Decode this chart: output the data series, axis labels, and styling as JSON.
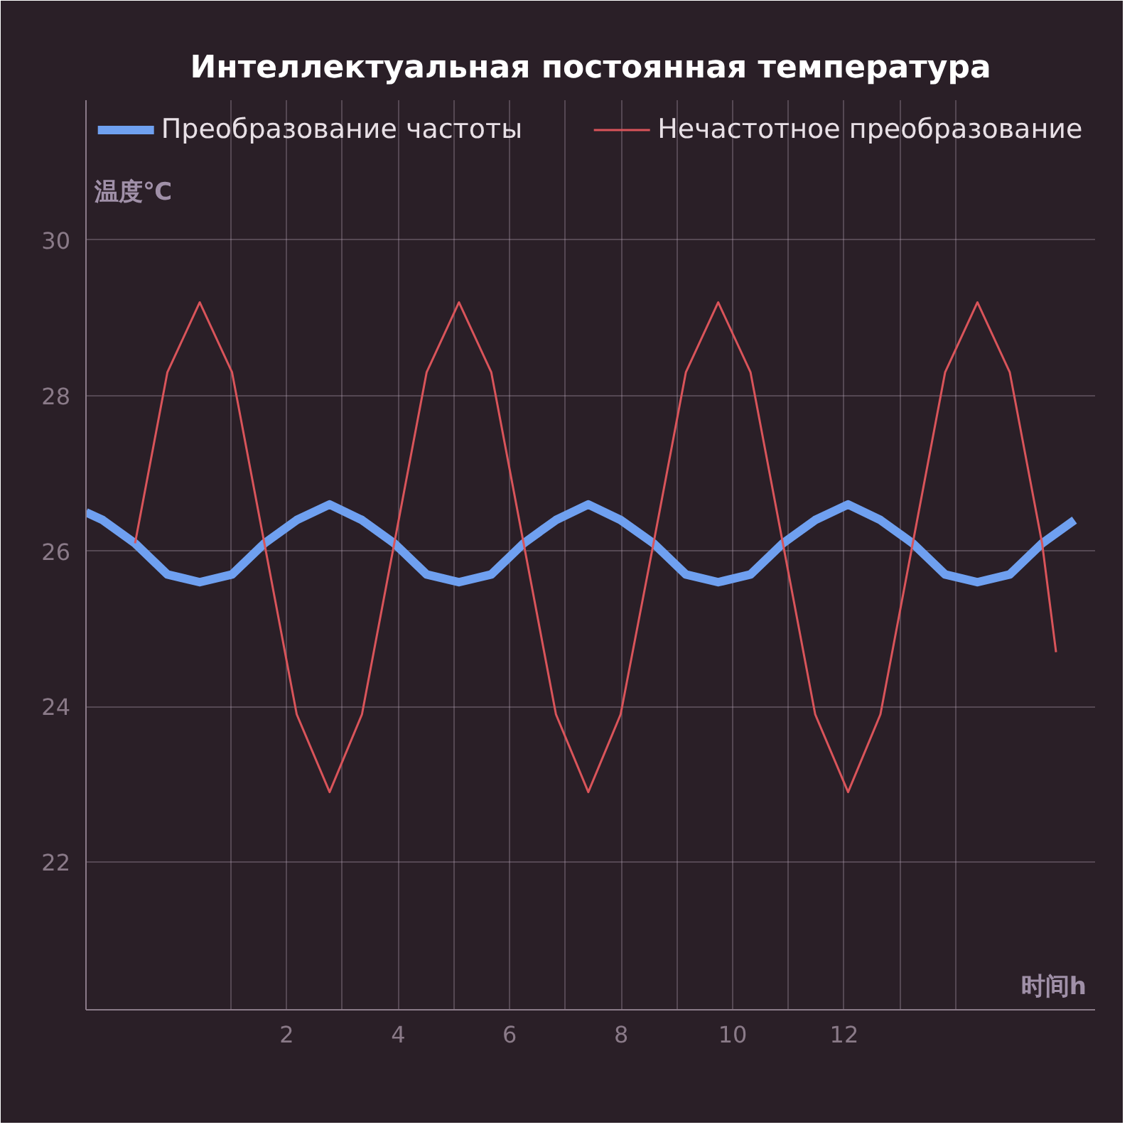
{
  "chart_data": {
    "type": "line",
    "title": "Интеллектуальная постоянная температура",
    "ylabel": "温度℃",
    "xlabel": "时间h",
    "xlim": [
      -1.6,
      16.5
    ],
    "ylim": [
      20.1,
      31.8
    ],
    "xticks": [
      {
        "value": 1,
        "label": null
      },
      2,
      {
        "value": 3,
        "label": null
      },
      4,
      {
        "value": 5,
        "label": null
      },
      6,
      {
        "value": 7,
        "label": null
      },
      8,
      {
        "value": 9,
        "label": null
      },
      10,
      {
        "value": 11,
        "label": null
      },
      12,
      {
        "value": 13,
        "label": null
      },
      {
        "value": 14,
        "label": null
      }
    ],
    "yticks": [
      22,
      24,
      26,
      28,
      30
    ],
    "grid": true,
    "legend": "top",
    "marker": "none",
    "line_style": "solid",
    "series": [
      {
        "name": "Преобразование частоты",
        "color": "#6fa0f0",
        "x": [
          -1.6,
          -1.3,
          -0.72,
          -0.14,
          0.44,
          1.02,
          1.6,
          2.18,
          2.77,
          3.35,
          3.93,
          4.51,
          5.09,
          5.67,
          6.25,
          6.83,
          7.41,
          7.99,
          8.58,
          9.16,
          9.74,
          10.32,
          10.9,
          11.48,
          12.07,
          12.65,
          13.23,
          13.81,
          14.39,
          14.97,
          15.55,
          16.13
        ],
        "values": [
          26.5,
          26.4,
          26.1,
          25.7,
          25.6,
          25.7,
          26.1,
          26.4,
          26.6,
          26.4,
          26.1,
          25.7,
          25.6,
          25.7,
          26.1,
          26.4,
          26.6,
          26.4,
          26.1,
          25.7,
          25.6,
          25.7,
          26.1,
          26.4,
          26.6,
          26.4,
          26.1,
          25.7,
          25.6,
          25.7,
          26.1,
          26.4
        ]
      },
      {
        "name": "Нечастотное преобразование",
        "color": "#d9545a",
        "x": [
          -0.72,
          -0.14,
          0.44,
          1.02,
          1.6,
          2.18,
          2.77,
          3.35,
          3.93,
          4.51,
          5.09,
          5.67,
          6.25,
          6.83,
          7.41,
          7.99,
          8.58,
          9.16,
          9.74,
          10.32,
          10.9,
          11.48,
          12.07,
          12.65,
          13.23,
          13.81,
          14.39,
          14.97,
          15.55,
          15.8
        ],
        "values": [
          26.1,
          28.3,
          29.2,
          28.3,
          26.1,
          23.9,
          22.9,
          23.9,
          26.1,
          28.3,
          29.2,
          28.3,
          26.1,
          23.9,
          22.9,
          23.9,
          26.1,
          28.3,
          29.2,
          28.3,
          26.1,
          23.9,
          22.9,
          23.9,
          26.1,
          28.3,
          29.2,
          28.3,
          26.1,
          24.7
        ]
      }
    ]
  }
}
